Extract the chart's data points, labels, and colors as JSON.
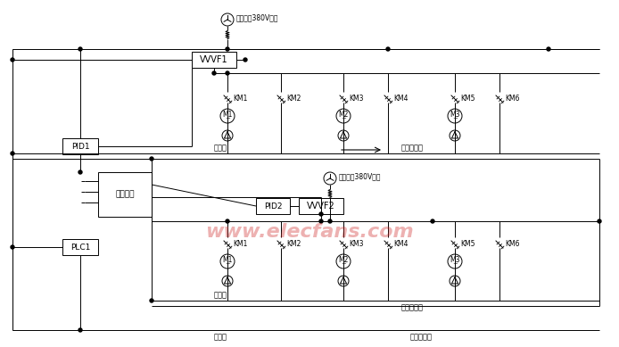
{
  "bg_color": "#ffffff",
  "lc": "#000000",
  "lw": 0.7,
  "figsize": [
    6.94,
    3.89
  ],
  "dpi": 100,
  "label_VVVF1": "VVVF1",
  "label_VVVF2": "VVVF2",
  "label_PID1": "PID1",
  "label_PID2": "PID2",
  "label_PLC1": "PLC1",
  "label_zhuleng": "制冷主机",
  "label_power1": "三相交流380V电源",
  "label_power2": "三相交流380V电源",
  "label_lengjis": "冷机水",
  "label_lengjix": "冷机水系统",
  "label_lengs": "冷冻水",
  "label_lengx": "冷冻水系统",
  "watermark1": "www.elecfans.com",
  "watermark_color": "#cc2222",
  "watermark_alpha": 0.35,
  "km_top": [
    "KM1",
    "KM2",
    "KM3",
    "KM4",
    "KM5",
    "KM6"
  ],
  "km_bot": [
    "KM1",
    "KM2",
    "KM3",
    "KM4",
    "KM5",
    "KM6"
  ],
  "motor_top": [
    "M1",
    "M2",
    "M3"
  ],
  "motor_bot": [
    "M1",
    "M2",
    "M3"
  ]
}
